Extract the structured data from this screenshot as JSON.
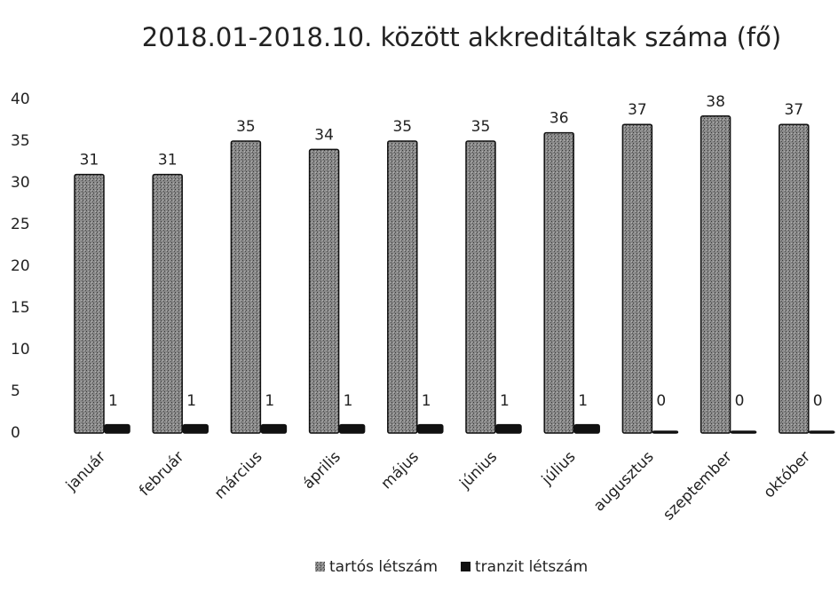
{
  "chart_data": {
    "type": "bar",
    "title": "2018.01-2018.10. között akkreditáltak száma (fő)",
    "categories": [
      "január",
      "február",
      "március",
      "április",
      "május",
      "június",
      "július",
      "augusztus",
      "szeptember",
      "október"
    ],
    "series": [
      {
        "name": "tartós létszám",
        "color": "#6e6e6e",
        "values": [
          31,
          31,
          35,
          34,
          35,
          35,
          36,
          37,
          38,
          37
        ]
      },
      {
        "name": "tranzit létszám",
        "color": "#111111",
        "values": [
          1,
          1,
          1,
          1,
          1,
          1,
          1,
          0,
          0,
          0
        ]
      }
    ],
    "ylim": [
      0,
      40
    ],
    "yticks": [
      0,
      5,
      10,
      15,
      20,
      25,
      30,
      35,
      40
    ],
    "grid": false,
    "legend": "bottom"
  }
}
